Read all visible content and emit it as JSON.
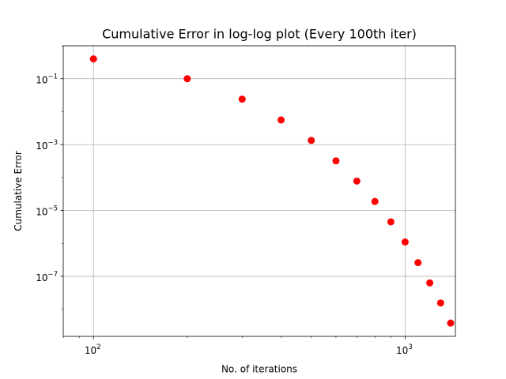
{
  "chart_data": {
    "type": "scatter",
    "title": "Cumulative Error in log-log plot (Every 100th iter)",
    "xlabel": "No. of iterations",
    "ylabel": "Cumulative Error",
    "xscale": "log",
    "yscale": "log",
    "xlim": [
      80,
      1450
    ],
    "ylim": [
      1.5e-09,
      1
    ],
    "grid": true,
    "marker_color": "#ff0000",
    "x_ticks": [
      {
        "value": 100,
        "base": "10",
        "exp": "2"
      },
      {
        "value": 1000,
        "base": "10",
        "exp": "3"
      }
    ],
    "y_ticks": [
      {
        "value": 0.1,
        "base": "10",
        "exp": "−1"
      },
      {
        "value": 0.001,
        "base": "10",
        "exp": "−3"
      },
      {
        "value": 1e-05,
        "base": "10",
        "exp": "−5"
      },
      {
        "value": 1e-07,
        "base": "10",
        "exp": "−7"
      }
    ],
    "series": [
      {
        "x": [
          100,
          200,
          300,
          400,
          500,
          600,
          700,
          800,
          900,
          1000,
          1100,
          1200,
          1300,
          1400
        ],
        "y": [
          0.4,
          0.1,
          0.024,
          0.0056,
          0.00134,
          0.00032,
          7.8e-05,
          1.87e-05,
          4.5e-06,
          1.1e-06,
          2.6e-07,
          6.3e-08,
          1.55e-08,
          3.8e-09
        ]
      }
    ]
  }
}
